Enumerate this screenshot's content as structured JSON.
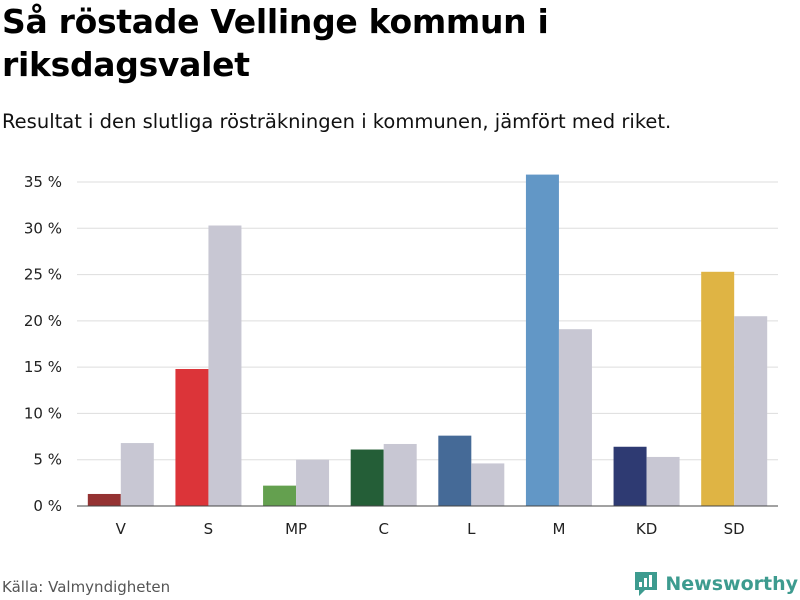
{
  "title": "Så röstade Vellinge kommun i riksdagsvalet",
  "subtitle": "Resultat i den slutliga rösträkningen i kommunen, jämfört med riket.",
  "source": "Källa: Valmyndigheten",
  "brand": {
    "name": "Newsworthy",
    "icon": "newsworthy-logo-icon",
    "color": "#3d9b8f"
  },
  "chart_data": {
    "type": "bar",
    "title": "Så röstade Vellinge kommun i riksdagsvalet",
    "xlabel": "",
    "ylabel": "",
    "ylim": [
      0,
      35
    ],
    "yticks": [
      0,
      5,
      10,
      15,
      20,
      25,
      30,
      35
    ],
    "ytick_labels": [
      "0 %",
      "5 %",
      "10 %",
      "15 %",
      "20 %",
      "25 %",
      "30 %",
      "35 %"
    ],
    "grid": true,
    "categories": [
      "V",
      "S",
      "MP",
      "C",
      "L",
      "M",
      "KD",
      "SD"
    ],
    "series": [
      {
        "name": "Vellinge kommun",
        "values": [
          1.3,
          14.8,
          2.2,
          6.1,
          7.6,
          35.8,
          6.4,
          25.3
        ],
        "colors": [
          "#943232",
          "#dc3439",
          "#64a04f",
          "#245e37",
          "#456a97",
          "#6297c6",
          "#2e3a72",
          "#dfb444"
        ]
      },
      {
        "name": "Riket",
        "values": [
          6.8,
          30.3,
          5.0,
          6.7,
          4.6,
          19.1,
          5.3,
          20.5
        ],
        "color": "#c8c7d3"
      }
    ]
  }
}
